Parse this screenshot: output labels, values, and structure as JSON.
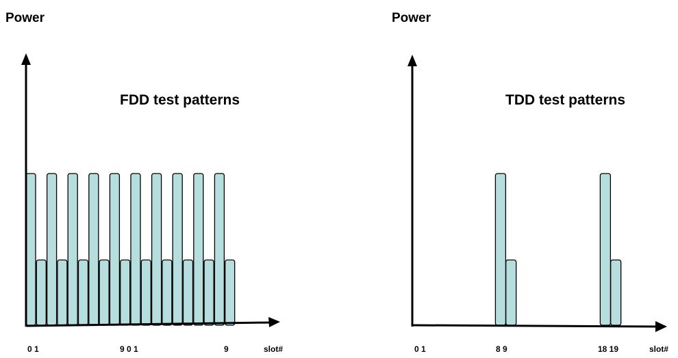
{
  "chart_data": [
    {
      "type": "bar",
      "ylabel": "Power",
      "title": "FDD test patterns",
      "xlabel": "slot#",
      "tick_labels": [
        "0 1",
        "9 0 1",
        "9"
      ],
      "bar_color": "#b7dede",
      "slots": [
        0,
        1,
        2,
        3,
        4,
        5,
        6,
        7,
        8,
        9,
        10,
        11,
        12,
        13,
        14,
        15,
        16,
        17,
        18,
        19
      ],
      "values": [
        1,
        0.43,
        1,
        0.43,
        1,
        0.43,
        1,
        0.43,
        1,
        0.43,
        1,
        0.43,
        1,
        0.43,
        1,
        0.43,
        1,
        0.43,
        1,
        0.43
      ],
      "ylim": [
        0,
        1
      ]
    },
    {
      "type": "bar",
      "ylabel": "Power",
      "title": "TDD test patterns",
      "xlabel": "slot#",
      "tick_labels": [
        "0 1",
        "8  9",
        "18 19"
      ],
      "bar_color": "#b7dede",
      "slots": [
        8,
        9,
        18,
        19
      ],
      "values": [
        1,
        0.43,
        1,
        0.43
      ],
      "ylim": [
        0,
        1
      ]
    }
  ]
}
